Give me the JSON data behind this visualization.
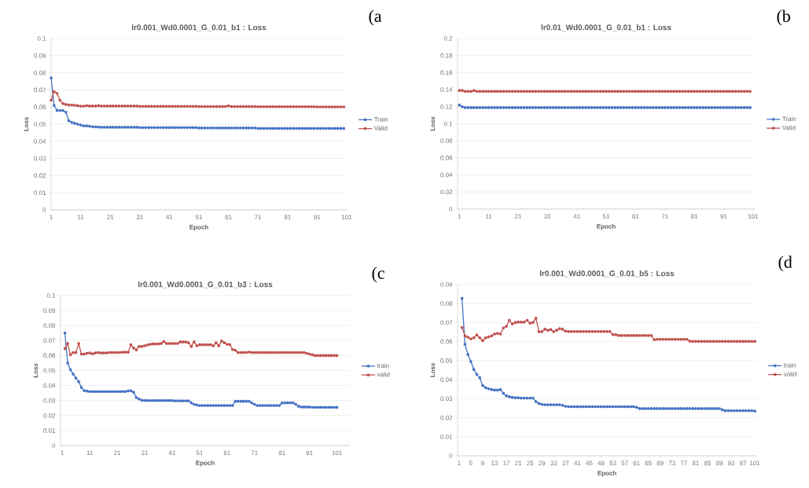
{
  "chart_data": [
    {
      "type": "line",
      "title": "lr0.001_Wd0.0001_G_0.01_b1 : Loss",
      "xlabel": "Epoch",
      "ylabel": "Loss",
      "annotations": [
        "(a"
      ],
      "grid": "y",
      "legend": "right",
      "marker": "circle",
      "xlim": [
        1,
        101
      ],
      "xticks": [
        1,
        11,
        21,
        31,
        41,
        51,
        61,
        71,
        81,
        91,
        101
      ],
      "ylim": [
        0,
        0.1
      ],
      "yticks": [
        0,
        0.01,
        0.02,
        0.03,
        0.04,
        0.05,
        0.06,
        0.07,
        0.08,
        0.09,
        0.1
      ],
      "x": [
        1,
        2,
        3,
        4,
        5,
        6,
        7,
        8,
        9,
        10,
        11,
        12,
        13,
        14,
        15,
        16,
        17,
        18,
        19,
        20,
        21,
        22,
        23,
        24,
        25,
        26,
        27,
        28,
        29,
        30,
        31,
        32,
        33,
        34,
        35,
        36,
        37,
        38,
        39,
        40,
        41,
        42,
        43,
        44,
        45,
        46,
        47,
        48,
        49,
        50,
        51,
        52,
        53,
        54,
        55,
        56,
        57,
        58,
        59,
        60,
        61,
        62,
        63,
        64,
        65,
        66,
        67,
        68,
        69,
        70,
        71,
        72,
        73,
        74,
        75,
        76,
        77,
        78,
        79,
        80,
        81,
        82,
        83,
        84,
        85,
        86,
        87,
        88,
        89,
        90,
        91,
        92,
        93,
        94,
        95,
        96,
        97,
        98,
        99,
        100
      ],
      "series": [
        {
          "name": "Train",
          "color": "#4472c4",
          "values": [
            0.077,
            0.061,
            0.058,
            0.058,
            0.058,
            0.057,
            0.052,
            0.051,
            0.0505,
            0.05,
            0.0495,
            0.049,
            0.049,
            0.0488,
            0.0485,
            0.0484,
            0.0483,
            0.0482,
            0.0482,
            0.0482,
            0.0482,
            0.0482,
            0.0482,
            0.0482,
            0.0482,
            0.0482,
            0.0482,
            0.0482,
            0.0482,
            0.0482,
            0.048,
            0.048,
            0.048,
            0.048,
            0.048,
            0.048,
            0.048,
            0.048,
            0.048,
            0.048,
            0.048,
            0.048,
            0.048,
            0.048,
            0.048,
            0.048,
            0.048,
            0.048,
            0.048,
            0.048,
            0.0478,
            0.0478,
            0.0478,
            0.0478,
            0.0478,
            0.0478,
            0.0478,
            0.0478,
            0.0478,
            0.0478,
            0.0478,
            0.0478,
            0.0478,
            0.0478,
            0.0478,
            0.0478,
            0.0478,
            0.0478,
            0.0478,
            0.0478,
            0.0475,
            0.0475,
            0.0475,
            0.0475,
            0.0475,
            0.0475,
            0.0475,
            0.0475,
            0.0475,
            0.0475,
            0.0475,
            0.0475,
            0.0475,
            0.0475,
            0.0475,
            0.0475,
            0.0475,
            0.0475,
            0.0475,
            0.0475,
            0.0475,
            0.0475,
            0.0475,
            0.0475,
            0.0475,
            0.0475,
            0.0475,
            0.0475,
            0.0475,
            0.0475
          ]
        },
        {
          "name": "Valid",
          "color": "#c0504d",
          "values": [
            0.064,
            0.069,
            0.068,
            0.064,
            0.062,
            0.0615,
            0.0612,
            0.0612,
            0.061,
            0.0608,
            0.0605,
            0.0605,
            0.0608,
            0.0606,
            0.0606,
            0.0606,
            0.0608,
            0.0606,
            0.0606,
            0.0606,
            0.0606,
            0.0606,
            0.0606,
            0.0606,
            0.0606,
            0.0606,
            0.0606,
            0.0606,
            0.0606,
            0.0606,
            0.0604,
            0.0604,
            0.0604,
            0.0604,
            0.0604,
            0.0604,
            0.0604,
            0.0604,
            0.0604,
            0.0604,
            0.0604,
            0.0604,
            0.0604,
            0.0604,
            0.0604,
            0.0604,
            0.0604,
            0.0604,
            0.0604,
            0.0604,
            0.0603,
            0.0603,
            0.0603,
            0.0603,
            0.0603,
            0.0603,
            0.0603,
            0.0603,
            0.0603,
            0.0603,
            0.0607,
            0.0603,
            0.0603,
            0.0603,
            0.0603,
            0.0603,
            0.0603,
            0.0603,
            0.0603,
            0.0603,
            0.0602,
            0.0602,
            0.0602,
            0.0602,
            0.0602,
            0.0602,
            0.0602,
            0.0602,
            0.0602,
            0.0602,
            0.0602,
            0.0602,
            0.0602,
            0.0602,
            0.0602,
            0.0602,
            0.0602,
            0.0602,
            0.0602,
            0.0602,
            0.0601,
            0.0601,
            0.0601,
            0.0601,
            0.0601,
            0.0601,
            0.0601,
            0.0601,
            0.0601,
            0.0601
          ]
        }
      ]
    },
    {
      "type": "line",
      "title": "lr0.01_Wd0.0001_G_0.01_b1 : Loss",
      "xlabel": "Epoch",
      "ylabel": "Loss",
      "annotations": [
        "(b"
      ],
      "grid": "y",
      "legend": "right",
      "marker": "circle",
      "xlim": [
        0.4,
        101.6
      ],
      "xticks": [
        1,
        11,
        21,
        31,
        41,
        51,
        61,
        71,
        81,
        91,
        101
      ],
      "ylim": [
        0,
        0.2
      ],
      "yticks": [
        0,
        0.02,
        0.04,
        0.06,
        0.08,
        0.1,
        0.12,
        0.14,
        0.16,
        0.18,
        0.2
      ],
      "x": [
        1,
        2,
        3,
        4,
        5,
        6,
        7,
        8,
        9,
        10,
        11,
        12,
        13,
        14,
        15,
        16,
        17,
        18,
        19,
        20,
        21,
        22,
        23,
        24,
        25,
        26,
        27,
        28,
        29,
        30,
        31,
        32,
        33,
        34,
        35,
        36,
        37,
        38,
        39,
        40,
        41,
        42,
        43,
        44,
        45,
        46,
        47,
        48,
        49,
        50,
        51,
        52,
        53,
        54,
        55,
        56,
        57,
        58,
        59,
        60,
        61,
        62,
        63,
        64,
        65,
        66,
        67,
        68,
        69,
        70,
        71,
        72,
        73,
        74,
        75,
        76,
        77,
        78,
        79,
        80,
        81,
        82,
        83,
        84,
        85,
        86,
        87,
        88,
        89,
        90,
        91,
        92,
        93,
        94,
        95,
        96,
        97,
        98,
        99,
        100
      ],
      "series": [
        {
          "name": "Train",
          "color": "#4472c4",
          "values": [
            0.122,
            0.12,
            0.119,
            0.119,
            0.119,
            0.119,
            0.119,
            0.119,
            0.119,
            0.119,
            0.119,
            0.119,
            0.119,
            0.119,
            0.119,
            0.119,
            0.119,
            0.119,
            0.119,
            0.119,
            0.119,
            0.119,
            0.119,
            0.119,
            0.119,
            0.119,
            0.119,
            0.119,
            0.119,
            0.119,
            0.119,
            0.119,
            0.119,
            0.119,
            0.119,
            0.119,
            0.119,
            0.119,
            0.119,
            0.119,
            0.119,
            0.119,
            0.119,
            0.119,
            0.119,
            0.119,
            0.119,
            0.119,
            0.119,
            0.119,
            0.119,
            0.119,
            0.119,
            0.119,
            0.119,
            0.119,
            0.119,
            0.119,
            0.119,
            0.119,
            0.119,
            0.119,
            0.119,
            0.119,
            0.119,
            0.119,
            0.119,
            0.119,
            0.119,
            0.119,
            0.119,
            0.119,
            0.119,
            0.119,
            0.119,
            0.119,
            0.119,
            0.119,
            0.119,
            0.119,
            0.119,
            0.119,
            0.119,
            0.119,
            0.119,
            0.119,
            0.119,
            0.119,
            0.119,
            0.119,
            0.119,
            0.119,
            0.119,
            0.119,
            0.119,
            0.119,
            0.119,
            0.119,
            0.119,
            0.119
          ]
        },
        {
          "name": "Valid",
          "color": "#c0504d",
          "values": [
            0.139,
            0.139,
            0.138,
            0.138,
            0.138,
            0.139,
            0.138,
            0.138,
            0.138,
            0.138,
            0.138,
            0.138,
            0.138,
            0.138,
            0.138,
            0.138,
            0.138,
            0.138,
            0.138,
            0.138,
            0.138,
            0.138,
            0.138,
            0.138,
            0.138,
            0.138,
            0.138,
            0.138,
            0.138,
            0.138,
            0.138,
            0.138,
            0.138,
            0.138,
            0.138,
            0.138,
            0.138,
            0.138,
            0.138,
            0.138,
            0.138,
            0.138,
            0.138,
            0.138,
            0.138,
            0.138,
            0.138,
            0.138,
            0.138,
            0.138,
            0.138,
            0.138,
            0.138,
            0.138,
            0.138,
            0.138,
            0.138,
            0.138,
            0.138,
            0.138,
            0.138,
            0.138,
            0.138,
            0.138,
            0.138,
            0.138,
            0.138,
            0.138,
            0.138,
            0.138,
            0.138,
            0.138,
            0.138,
            0.138,
            0.138,
            0.138,
            0.138,
            0.138,
            0.138,
            0.138,
            0.138,
            0.138,
            0.138,
            0.138,
            0.138,
            0.138,
            0.138,
            0.138,
            0.138,
            0.138,
            0.138,
            0.138,
            0.138,
            0.138,
            0.138,
            0.138,
            0.138,
            0.138,
            0.138,
            0.138
          ]
        }
      ]
    },
    {
      "type": "line",
      "title": "lr0.001_Wd0.0001_G_0.01_b3 : Loss",
      "xlabel": "Epoch",
      "ylabel": "Loss",
      "annotations": [
        "(c"
      ],
      "grid": "y",
      "legend": "right",
      "marker": "circle",
      "xlim": [
        0.4,
        105.7
      ],
      "xticks": [
        1,
        11,
        21,
        31,
        41,
        51,
        61,
        71,
        81,
        91,
        101
      ],
      "ylim": [
        0,
        0.1
      ],
      "yticks": [
        0,
        0.01,
        0.02,
        0.03,
        0.04,
        0.05,
        0.06,
        0.07,
        0.08,
        0.09,
        0.1
      ],
      "x": [
        2,
        3,
        4,
        5,
        6,
        7,
        8,
        9,
        10,
        11,
        12,
        13,
        14,
        15,
        16,
        17,
        18,
        19,
        20,
        21,
        22,
        23,
        24,
        25,
        26,
        27,
        28,
        29,
        30,
        31,
        32,
        33,
        34,
        35,
        36,
        37,
        38,
        39,
        40,
        41,
        42,
        43,
        44,
        45,
        46,
        47,
        48,
        49,
        50,
        51,
        52,
        53,
        54,
        55,
        56,
        57,
        58,
        59,
        60,
        61,
        62,
        63,
        64,
        65,
        66,
        67,
        68,
        69,
        70,
        71,
        72,
        73,
        74,
        75,
        76,
        77,
        78,
        79,
        80,
        81,
        82,
        83,
        84,
        85,
        86,
        87,
        88,
        89,
        90,
        91,
        92,
        93,
        94,
        95,
        96,
        97,
        98,
        99,
        100,
        101
      ],
      "series": [
        {
          "name": "train",
          "color": "#4472c4",
          "values": [
            0.075,
            0.055,
            0.0506,
            0.0476,
            0.045,
            0.0426,
            0.0387,
            0.0366,
            0.0363,
            0.036,
            0.036,
            0.036,
            0.036,
            0.036,
            0.036,
            0.036,
            0.036,
            0.036,
            0.036,
            0.036,
            0.036,
            0.036,
            0.036,
            0.0365,
            0.0365,
            0.0355,
            0.032,
            0.031,
            0.0302,
            0.03,
            0.03,
            0.03,
            0.03,
            0.03,
            0.03,
            0.03,
            0.03,
            0.03,
            0.03,
            0.03,
            0.0298,
            0.0298,
            0.0298,
            0.0298,
            0.0298,
            0.0298,
            0.0285,
            0.0275,
            0.027,
            0.0267,
            0.0267,
            0.0267,
            0.0267,
            0.0267,
            0.0267,
            0.0267,
            0.0267,
            0.0267,
            0.0267,
            0.0267,
            0.0267,
            0.0267,
            0.0295,
            0.0295,
            0.0295,
            0.0295,
            0.0295,
            0.0295,
            0.0285,
            0.0275,
            0.0267,
            0.0267,
            0.0267,
            0.0267,
            0.0267,
            0.0267,
            0.0267,
            0.0267,
            0.0267,
            0.0283,
            0.0285,
            0.0285,
            0.0285,
            0.0285,
            0.0275,
            0.0262,
            0.0257,
            0.0257,
            0.0257,
            0.0257,
            0.0255,
            0.0255,
            0.0255,
            0.0255,
            0.0255,
            0.0255,
            0.0255,
            0.0255,
            0.0255,
            0.0255
          ]
        },
        {
          "name": "valid",
          "color": "#c0504d",
          "values": [
            0.0646,
            0.068,
            0.0605,
            0.062,
            0.062,
            0.068,
            0.061,
            0.061,
            0.0615,
            0.0617,
            0.0612,
            0.0617,
            0.062,
            0.0617,
            0.0617,
            0.0617,
            0.062,
            0.062,
            0.062,
            0.062,
            0.062,
            0.0622,
            0.0622,
            0.0622,
            0.0672,
            0.065,
            0.0637,
            0.066,
            0.066,
            0.0665,
            0.067,
            0.0675,
            0.0677,
            0.0677,
            0.0677,
            0.068,
            0.0693,
            0.068,
            0.068,
            0.068,
            0.068,
            0.068,
            0.069,
            0.069,
            0.069,
            0.0685,
            0.066,
            0.069,
            0.0665,
            0.0672,
            0.0672,
            0.0672,
            0.0672,
            0.0672,
            0.0665,
            0.0685,
            0.0665,
            0.0697,
            0.0685,
            0.0675,
            0.0673,
            0.064,
            0.0635,
            0.062,
            0.062,
            0.062,
            0.062,
            0.0623,
            0.062,
            0.062,
            0.062,
            0.062,
            0.062,
            0.062,
            0.062,
            0.062,
            0.062,
            0.062,
            0.062,
            0.062,
            0.062,
            0.062,
            0.062,
            0.062,
            0.062,
            0.062,
            0.062,
            0.062,
            0.0615,
            0.061,
            0.0605,
            0.06,
            0.06,
            0.06,
            0.06,
            0.06,
            0.06,
            0.06,
            0.06,
            0.06
          ]
        }
      ]
    },
    {
      "type": "line",
      "title": "lr0.001_Wd0.0001_G_0.01_b5 : Loss",
      "xlabel": "Epoch",
      "ylabel": "Loss",
      "annotations": [
        "(d"
      ],
      "grid": "y",
      "legend": "right",
      "marker": "circle",
      "xlim": [
        0.5,
        101.5
      ],
      "xticks": [
        1,
        5,
        9,
        13,
        17,
        21,
        25,
        29,
        33,
        37,
        41,
        45,
        49,
        53,
        57,
        61,
        65,
        69,
        73,
        77,
        81,
        85,
        89,
        93,
        97,
        101
      ],
      "ylim": [
        0,
        0.09
      ],
      "yticks": [
        0,
        0.01,
        0.02,
        0.03,
        0.04,
        0.05,
        0.06,
        0.07,
        0.08,
        0.09
      ],
      "x": [
        2,
        3,
        4,
        5,
        6,
        7,
        8,
        9,
        10,
        11,
        12,
        13,
        14,
        15,
        16,
        17,
        18,
        19,
        20,
        21,
        22,
        23,
        24,
        25,
        26,
        27,
        28,
        29,
        30,
        31,
        32,
        33,
        34,
        35,
        36,
        37,
        38,
        39,
        40,
        41,
        42,
        43,
        44,
        45,
        46,
        47,
        48,
        49,
        50,
        51,
        52,
        53,
        54,
        55,
        56,
        57,
        58,
        59,
        60,
        61,
        62,
        63,
        64,
        65,
        66,
        67,
        68,
        69,
        70,
        71,
        72,
        73,
        74,
        75,
        76,
        77,
        78,
        79,
        80,
        81,
        82,
        83,
        84,
        85,
        86,
        87,
        88,
        89,
        90,
        91,
        92,
        93,
        94,
        95,
        96,
        97,
        98,
        99,
        100,
        101
      ],
      "series": [
        {
          "name": "train",
          "color": "#4472c4",
          "values": [
            0.0827,
            0.0586,
            0.0532,
            0.0495,
            0.0454,
            0.0428,
            0.041,
            0.0369,
            0.0358,
            0.0352,
            0.0348,
            0.0345,
            0.0345,
            0.0348,
            0.0328,
            0.0315,
            0.031,
            0.0307,
            0.0305,
            0.0305,
            0.0303,
            0.0303,
            0.0303,
            0.0303,
            0.0303,
            0.0285,
            0.0275,
            0.027,
            0.0268,
            0.0268,
            0.0268,
            0.0268,
            0.0268,
            0.0268,
            0.0265,
            0.026,
            0.0258,
            0.0258,
            0.0258,
            0.0258,
            0.0258,
            0.0258,
            0.0258,
            0.0258,
            0.0258,
            0.0258,
            0.0258,
            0.0258,
            0.0258,
            0.0258,
            0.0258,
            0.0258,
            0.0258,
            0.0258,
            0.0258,
            0.0258,
            0.0258,
            0.0258,
            0.0258,
            0.0255,
            0.0248,
            0.0248,
            0.0248,
            0.0248,
            0.0248,
            0.0248,
            0.0248,
            0.0248,
            0.0248,
            0.0248,
            0.0248,
            0.0248,
            0.0248,
            0.0248,
            0.0248,
            0.0248,
            0.0248,
            0.0248,
            0.0248,
            0.0248,
            0.0248,
            0.0248,
            0.0248,
            0.0248,
            0.0248,
            0.0248,
            0.0248,
            0.0248,
            0.0242,
            0.0237,
            0.0237,
            0.0237,
            0.0237,
            0.0237,
            0.0237,
            0.0237,
            0.0237,
            0.0237,
            0.0237,
            0.0235
          ]
        },
        {
          "name": "valid",
          "color": "#c0504d",
          "values": [
            0.0674,
            0.063,
            0.0623,
            0.0614,
            0.062,
            0.0635,
            0.062,
            0.0605,
            0.062,
            0.0625,
            0.063,
            0.064,
            0.0643,
            0.064,
            0.0672,
            0.068,
            0.0712,
            0.0693,
            0.07,
            0.0702,
            0.0702,
            0.0702,
            0.0712,
            0.0697,
            0.07,
            0.0723,
            0.0652,
            0.0652,
            0.0665,
            0.066,
            0.0663,
            0.0652,
            0.066,
            0.0668,
            0.0665,
            0.0655,
            0.0653,
            0.0653,
            0.0653,
            0.0653,
            0.0653,
            0.0653,
            0.0653,
            0.0653,
            0.0653,
            0.0653,
            0.0653,
            0.0653,
            0.0653,
            0.0653,
            0.0653,
            0.0637,
            0.0636,
            0.0632,
            0.0632,
            0.0632,
            0.0632,
            0.0632,
            0.0632,
            0.0632,
            0.0632,
            0.0632,
            0.0632,
            0.0632,
            0.0632,
            0.061,
            0.0612,
            0.0612,
            0.0612,
            0.0612,
            0.0612,
            0.0612,
            0.0612,
            0.0612,
            0.0612,
            0.0612,
            0.0612,
            0.0602,
            0.0601,
            0.0601,
            0.0601,
            0.0601,
            0.0601,
            0.0601,
            0.0601,
            0.0601,
            0.0601,
            0.0601,
            0.0601,
            0.0601,
            0.0601,
            0.0601,
            0.0601,
            0.0601,
            0.0601,
            0.0601,
            0.0601,
            0.0601,
            0.0601,
            0.0601
          ]
        }
      ]
    }
  ]
}
